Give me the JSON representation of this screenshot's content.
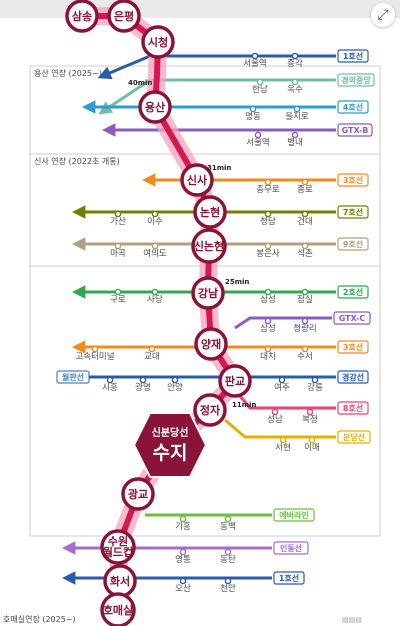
{
  "sections": [
    {
      "label": "용산 연장 (2025~)"
    },
    {
      "label": "신사 연장 (2022초 개통)"
    },
    {
      "label": "호매실연장 (2025~)"
    }
  ],
  "main_stations": [
    {
      "name": "삼송"
    },
    {
      "name": "은평"
    },
    {
      "name": "시청"
    },
    {
      "name": "용산"
    },
    {
      "name": "신사"
    },
    {
      "name": "논현"
    },
    {
      "name": "신논현"
    },
    {
      "name": "강남"
    },
    {
      "name": "양재"
    },
    {
      "name": "판교"
    },
    {
      "name": "정자"
    },
    {
      "name": "광교"
    },
    {
      "name": "수원월드컵"
    },
    {
      "name": "화서"
    },
    {
      "name": "호매실"
    }
  ],
  "hub": {
    "line": "신분당선",
    "name": "수지"
  },
  "times": [
    {
      "label": "40min"
    },
    {
      "label": "31min"
    },
    {
      "label": "25min"
    },
    {
      "label": "11min"
    }
  ],
  "transfer_lines": [
    {
      "tag": "1호선",
      "color": "#2a5caa",
      "stations": [
        "서울역",
        "종각"
      ]
    },
    {
      "tag": "경의중앙",
      "color": "#6dbfa6",
      "stations": [
        "한남",
        "옥수"
      ]
    },
    {
      "tag": "4호선",
      "color": "#2e9bd6",
      "stations": [
        "명동",
        "을지로"
      ]
    },
    {
      "tag": "GTX-B",
      "color": "#8a5cc2",
      "stations": [
        "서울역",
        "별내"
      ]
    },
    {
      "tag": "3호선",
      "color": "#f08c1e",
      "stations": [
        "충무로",
        "종로"
      ]
    },
    {
      "tag": "7호선",
      "color": "#747f00",
      "stations": [
        "가산",
        "이수",
        "청담",
        "건대"
      ]
    },
    {
      "tag": "9호선",
      "color": "#b0a080",
      "stations": [
        "마곡",
        "여의도",
        "봉은사",
        "석촌"
      ]
    },
    {
      "tag": "2호선",
      "color": "#2fa84f",
      "stations": [
        "구로",
        "사당",
        "삼성",
        "잠실"
      ]
    },
    {
      "tag": "GTX-C",
      "color": "#8a5cc2",
      "stations": [
        "삼성",
        "청량리"
      ]
    },
    {
      "tag": "3호선",
      "color": "#f08c1e",
      "stations": [
        "고속터미널",
        "교대",
        "대치",
        "수서"
      ]
    },
    {
      "tag": "월판선",
      "color": "#4a82c3",
      "stations": []
    },
    {
      "tag": "경강선",
      "color": "#2a5caa",
      "stations": [
        "시흥",
        "광명",
        "안양",
        "여주",
        "강릉"
      ]
    },
    {
      "tag": "8호선",
      "color": "#e8437a",
      "stations": [
        "성남",
        "복정"
      ]
    },
    {
      "tag": "분당선",
      "color": "#e3b200",
      "stations": [
        "서현",
        "이매"
      ]
    },
    {
      "tag": "에버라인",
      "color": "#6cbf3b",
      "stations": [
        "기흥",
        "동백"
      ]
    },
    {
      "tag": "인동선",
      "color": "#a86bd1",
      "stations": [
        "영통",
        "동탄"
      ]
    },
    {
      "tag": "1호선",
      "color": "#2a5caa",
      "stations": [
        "오산",
        "천안"
      ]
    }
  ],
  "colors": {
    "main_line": "#d6184f",
    "glow": "#f7a3c0",
    "node_border": "#8a1437",
    "hub_fill": "#8a1437"
  },
  "icons": {
    "zoom": "zoom-icon"
  }
}
